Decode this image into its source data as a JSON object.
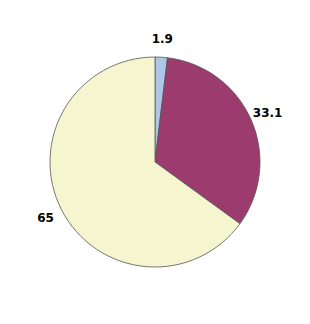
{
  "chart_data": {
    "type": "pie",
    "values": [
      1.9,
      33.1,
      65.0
    ],
    "colors": [
      "#aec6e8",
      "#9b3b6e",
      "#f5f5d0"
    ],
    "data_labels": true
  }
}
